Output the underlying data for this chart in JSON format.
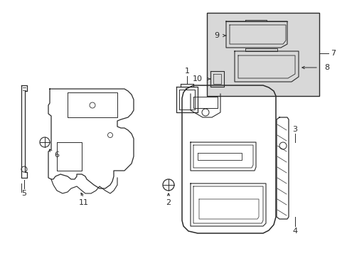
{
  "bg_color": "#ffffff",
  "line_color": "#2a2a2a",
  "inset_bg": "#d8d8d8",
  "figsize": [
    4.89,
    3.6
  ],
  "dpi": 100
}
